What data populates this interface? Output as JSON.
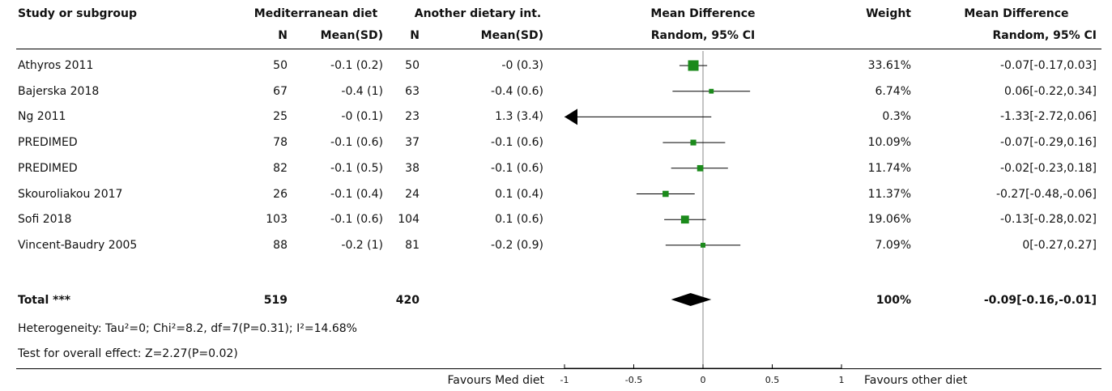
{
  "header": {
    "study_label": "Study or subgroup",
    "group1_label": "Mediterranean diet",
    "group2_label": "Another dietary int.",
    "md_label": "Mean Difference",
    "weight_label": "Weight",
    "md2_label": "Mean Difference",
    "n1": "N",
    "mean1": "Mean(SD)",
    "n2": "N",
    "mean2": "Mean(SD)",
    "method": "Random, 95% CI",
    "method2": "Random, 95% CI"
  },
  "studies": [
    {
      "name": "Athyros 2011",
      "n1": "50",
      "m1": "-0.1 (0.2)",
      "n2": "50",
      "m2": "-0 (0.3)",
      "weight": "33.61%",
      "ci": "-0.07[-0.17,0.03]"
    },
    {
      "name": "Bajerska 2018",
      "n1": "67",
      "m1": "-0.4 (1)",
      "n2": "63",
      "m2": "-0.4 (0.6)",
      "weight": "6.74%",
      "ci": "0.06[-0.22,0.34]"
    },
    {
      "name": "Ng 2011",
      "n1": "25",
      "m1": "-0 (0.1)",
      "n2": "23",
      "m2": "1.3 (3.4)",
      "weight": "0.3%",
      "ci": "-1.33[-2.72,0.06]"
    },
    {
      "name": "PREDIMED",
      "n1": "78",
      "m1": "-0.1 (0.6)",
      "n2": "37",
      "m2": "-0.1 (0.6)",
      "weight": "10.09%",
      "ci": "-0.07[-0.29,0.16]"
    },
    {
      "name": "PREDIMED",
      "n1": "82",
      "m1": "-0.1 (0.5)",
      "n2": "38",
      "m2": "-0.1 (0.6)",
      "weight": "11.74%",
      "ci": "-0.02[-0.23,0.18]"
    },
    {
      "name": "Skouroliakou 2017",
      "n1": "26",
      "m1": "-0.1 (0.4)",
      "n2": "24",
      "m2": "0.1 (0.4)",
      "weight": "11.37%",
      "ci": "-0.27[-0.48,-0.06]"
    },
    {
      "name": "Sofi 2018",
      "n1": "103",
      "m1": "-0.1 (0.6)",
      "n2": "104",
      "m2": "0.1 (0.6)",
      "weight": "19.06%",
      "ci": "-0.13[-0.28,0.02]"
    },
    {
      "name": "Vincent-Baudry 2005",
      "n1": "88",
      "m1": "-0.2 (1)",
      "n2": "81",
      "m2": "-0.2 (0.9)",
      "weight": "7.09%",
      "ci": "0[-0.27,0.27]"
    }
  ],
  "total": {
    "label": "Total ***",
    "n1": "519",
    "n2": "420",
    "weight": "100%",
    "ci": "-0.09[-0.16,-0.01]"
  },
  "footer": {
    "heterogeneity": "Heterogeneity: Tau²=0; Chi²=8.2, df=7(P=0.31); I²=14.68%",
    "overall": "Test for overall effect: Z=2.27(P=0.02)",
    "favours_left": "Favours Med diet",
    "favours_right": "Favours other diet"
  },
  "colors": {
    "square": "#1b8a1b",
    "diamond": "#000000"
  },
  "chart_data": {
    "type": "scatter",
    "xlim": [
      -1,
      1
    ],
    "ticks": [
      "-1",
      "-0.5",
      "0",
      "0.5",
      "1"
    ],
    "tick_values": [
      -1,
      -0.5,
      0,
      0.5,
      1
    ],
    "points": [
      {
        "study": "Athyros 2011",
        "md": -0.07,
        "lo": -0.17,
        "hi": 0.03,
        "weight": 33.61
      },
      {
        "study": "Bajerska 2018",
        "md": 0.06,
        "lo": -0.22,
        "hi": 0.34,
        "weight": 6.74
      },
      {
        "study": "Ng 2011",
        "md": -1.33,
        "lo": -2.72,
        "hi": 0.06,
        "weight": 0.3
      },
      {
        "study": "PREDIMED",
        "md": -0.07,
        "lo": -0.29,
        "hi": 0.16,
        "weight": 10.09
      },
      {
        "study": "PREDIMED",
        "md": -0.02,
        "lo": -0.23,
        "hi": 0.18,
        "weight": 11.74
      },
      {
        "study": "Skouroliakou 2017",
        "md": -0.27,
        "lo": -0.48,
        "hi": -0.06,
        "weight": 11.37
      },
      {
        "study": "Sofi 2018",
        "md": -0.13,
        "lo": -0.28,
        "hi": 0.02,
        "weight": 19.06
      },
      {
        "study": "Vincent-Baudry 2005",
        "md": 0,
        "lo": -0.27,
        "hi": 0.27,
        "weight": 7.09
      }
    ],
    "pooled": {
      "md": -0.09,
      "lo": -0.16,
      "hi": -0.01
    }
  }
}
